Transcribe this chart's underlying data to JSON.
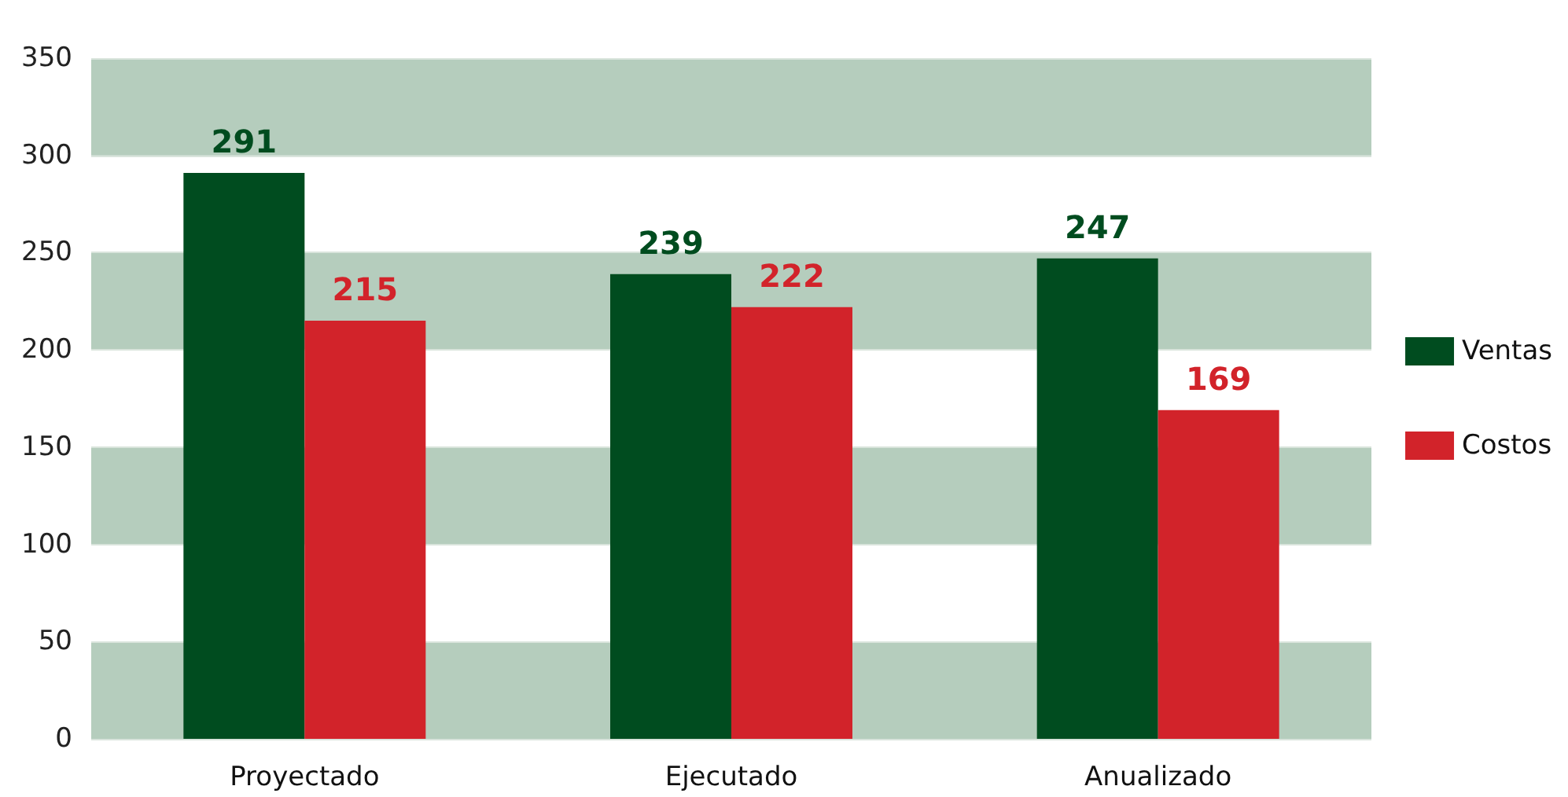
{
  "chart_data": {
    "type": "bar",
    "categories": [
      "Proyectado",
      "Ejecutado",
      "Anualizado"
    ],
    "series": [
      {
        "name": "Ventas",
        "color": "#004c1f",
        "values": [
          291,
          239,
          247
        ]
      },
      {
        "name": "Costos",
        "color": "#d2232a",
        "values": [
          215,
          222,
          169
        ]
      }
    ],
    "ylim": [
      0,
      350
    ],
    "yticks": [
      0,
      50,
      100,
      150,
      200,
      250,
      300,
      350
    ],
    "grid": "y",
    "legend": "right",
    "data_labels": true
  }
}
